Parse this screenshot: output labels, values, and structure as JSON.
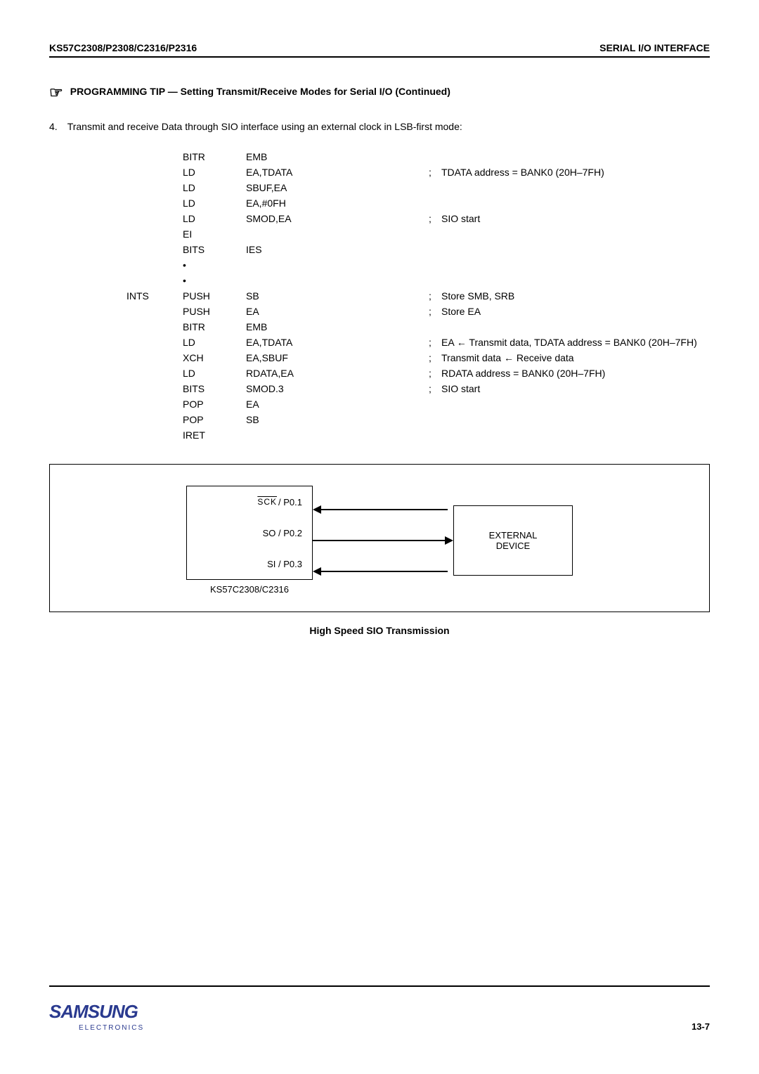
{
  "header": {
    "left": "KS57C2308/P2308/C2316/P2316",
    "right": "SERIAL I/O INTERFACE"
  },
  "tip": {
    "title": "PROGRAMMING TIP — Setting Transmit/Receive Modes for Serial I/O (Continued)"
  },
  "para": {
    "num": "4.",
    "text": "Transmit and receive Data through SIO interface using an external clock in LSB-first mode:"
  },
  "code": {
    "rows": [
      {
        "label": "",
        "mnem": "BITR",
        "ops": "EMB",
        "semi": "",
        "comm": ""
      },
      {
        "label": "",
        "mnem": "LD",
        "ops": "EA,TDATA",
        "semi": ";",
        "comm": "TDATA address = BANK0 (20H–7FH)"
      },
      {
        "label": "",
        "mnem": "LD",
        "ops": "SBUF,EA",
        "semi": "",
        "comm": ""
      },
      {
        "label": "",
        "mnem": "LD",
        "ops": "EA,#0FH",
        "semi": "",
        "comm": ""
      },
      {
        "label": "",
        "mnem": "LD",
        "ops": "SMOD,EA",
        "semi": ";",
        "comm": "SIO start"
      },
      {
        "label": "",
        "mnem": "EI",
        "ops": "",
        "semi": "",
        "comm": ""
      },
      {
        "label": "",
        "mnem": "BITS",
        "ops": "IES",
        "semi": "",
        "comm": ""
      },
      {
        "label": "",
        "mnem": "•",
        "ops": "",
        "semi": "",
        "comm": ""
      },
      {
        "label": "",
        "mnem": "•",
        "ops": "",
        "semi": "",
        "comm": ""
      },
      {
        "label": "INTS",
        "mnem": "PUSH",
        "ops": "SB",
        "semi": ";",
        "comm": "Store SMB, SRB"
      },
      {
        "label": "",
        "mnem": "PUSH",
        "ops": "EA",
        "semi": ";",
        "comm": "Store EA"
      },
      {
        "label": "",
        "mnem": "BITR",
        "ops": "EMB",
        "semi": "",
        "comm": ""
      },
      {
        "label": "",
        "mnem": "LD",
        "ops": "EA,TDATA",
        "semi": ";",
        "comm": "EA ← Transmit data, TDATA address = BANK0 (20H–7FH)"
      },
      {
        "label": "",
        "mnem": "XCH",
        "ops": "EA,SBUF",
        "semi": ";",
        "comm": "Transmit data ← Receive data"
      },
      {
        "label": "",
        "mnem": "LD",
        "ops": "RDATA,EA",
        "semi": ";",
        "comm": "RDATA address = BANK0 (20H–7FH)"
      },
      {
        "label": "",
        "mnem": "BITS",
        "ops": "SMOD.3",
        "semi": ";",
        "comm": "SIO start"
      },
      {
        "label": "",
        "mnem": "POP",
        "ops": "EA",
        "semi": "",
        "comm": ""
      },
      {
        "label": "",
        "mnem": "POP",
        "ops": "SB",
        "semi": "",
        "comm": ""
      },
      {
        "label": "",
        "mnem": "IRET",
        "ops": "",
        "semi": "",
        "comm": ""
      }
    ]
  },
  "diagram": {
    "pins": {
      "sck_over": "SCK",
      "sck_rest": " / P0.1",
      "so": "SO / P0.2",
      "si": "SI / P0.3"
    },
    "chip_label": "KS57C2308/C2316",
    "ext1": "EXTERNAL",
    "ext2": "DEVICE"
  },
  "caption": "High Speed SIO Transmission",
  "footer": {
    "logo_main": "SAMSUNG",
    "logo_sub": "ELECTRONICS",
    "page": "13-7"
  }
}
